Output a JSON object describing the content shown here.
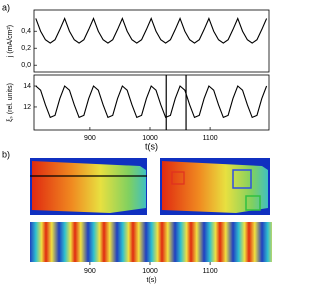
{
  "panel_labels": [
    "a)",
    "b)"
  ],
  "chart_data": [
    {
      "type": "line",
      "y_label": "j (mA/cm²)",
      "x": [
        810,
        818,
        826,
        834,
        842,
        850,
        858,
        866,
        874,
        882,
        890,
        898,
        906,
        914,
        922,
        930,
        938,
        946,
        954,
        962,
        970,
        978,
        986,
        994,
        1002,
        1010,
        1018,
        1026,
        1034,
        1042,
        1050,
        1058,
        1066,
        1074,
        1082,
        1090,
        1098,
        1106,
        1114,
        1122,
        1130,
        1138,
        1146,
        1154,
        1162,
        1170,
        1178,
        1186,
        1194
      ],
      "values": [
        0.55,
        0.4,
        0.3,
        0.26,
        0.3,
        0.42,
        0.55,
        0.4,
        0.3,
        0.26,
        0.3,
        0.42,
        0.55,
        0.4,
        0.3,
        0.26,
        0.3,
        0.42,
        0.55,
        0.4,
        0.3,
        0.26,
        0.3,
        0.42,
        0.55,
        0.4,
        0.3,
        0.26,
        0.3,
        0.42,
        0.55,
        0.4,
        0.3,
        0.26,
        0.3,
        0.42,
        0.55,
        0.4,
        0.3,
        0.26,
        0.3,
        0.42,
        0.55,
        0.4,
        0.3,
        0.26,
        0.3,
        0.42,
        0.55
      ],
      "color": "#000000",
      "xlim": [
        807,
        1198
      ],
      "ylim": [
        -0.08,
        0.65
      ],
      "yticks": [
        {
          "value": 0,
          "label": "0,0"
        },
        {
          "value": 0.2,
          "label": "0,2"
        },
        {
          "value": 0.4,
          "label": "0,4"
        }
      ]
    },
    {
      "type": "line",
      "y_label": "ξₛ (rel. units)",
      "x_label": "t(s)",
      "x": [
        810,
        818,
        826,
        834,
        842,
        850,
        858,
        866,
        874,
        882,
        890,
        898,
        906,
        914,
        922,
        930,
        938,
        946,
        954,
        962,
        970,
        978,
        986,
        994,
        1002,
        1010,
        1018,
        1026,
        1034,
        1042,
        1050,
        1058,
        1066,
        1074,
        1082,
        1090,
        1098,
        1106,
        1114,
        1122,
        1130,
        1138,
        1146,
        1154,
        1162,
        1170,
        1178,
        1186,
        1194
      ],
      "values": [
        14.0,
        13.6,
        12.2,
        11.0,
        11.2,
        12.8,
        14.0,
        13.6,
        12.2,
        11.0,
        11.2,
        12.8,
        14.0,
        13.6,
        12.2,
        11.0,
        11.2,
        12.8,
        14.0,
        13.6,
        12.2,
        11.0,
        11.2,
        12.8,
        14.0,
        13.6,
        12.2,
        11.0,
        11.2,
        12.8,
        14.0,
        13.6,
        12.2,
        11.0,
        11.2,
        12.8,
        14.0,
        13.6,
        12.2,
        11.0,
        11.2,
        12.8,
        14.0,
        13.6,
        12.2,
        11.0,
        11.2,
        12.8,
        14.0
      ],
      "color": "#000000",
      "xlim": [
        807,
        1198
      ],
      "ylim": [
        9.8,
        15.05
      ],
      "xticks": [
        900,
        1000,
        1100
      ],
      "yticks": [
        12,
        14
      ],
      "vlines": [
        1027,
        1060
      ]
    }
  ],
  "strip": {
    "x_label": "t(s)",
    "xlim": [
      807,
      1198
    ],
    "xticks": [
      900,
      1000,
      1100
    ]
  }
}
